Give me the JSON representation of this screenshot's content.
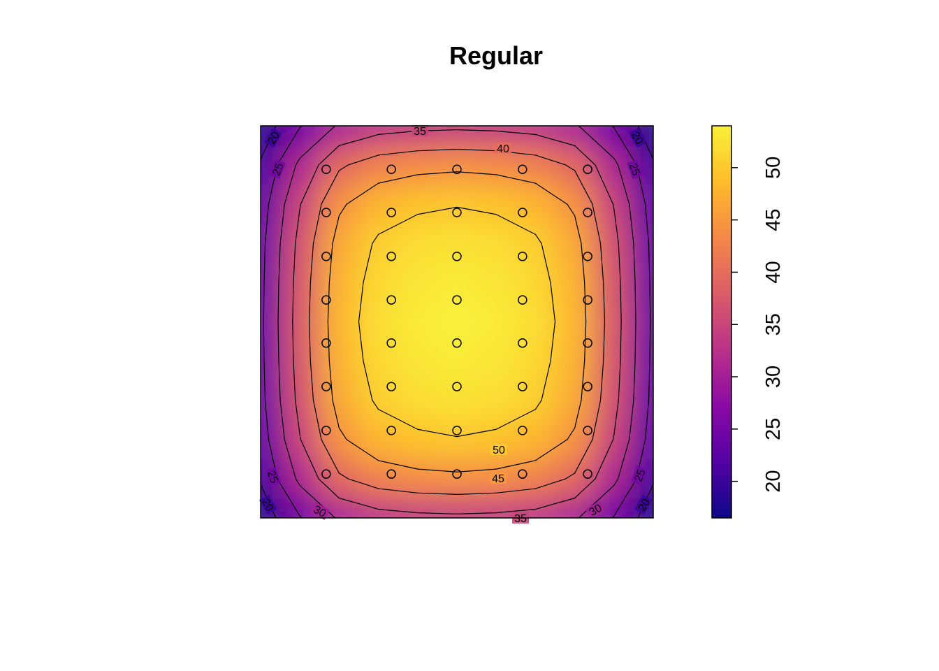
{
  "chart_data": {
    "type": "contour",
    "title": "Regular",
    "xlim": [
      0,
      1
    ],
    "ylim": [
      0,
      1
    ],
    "grid_x": [
      0,
      0.1,
      0.2,
      0.3,
      0.4,
      0.5,
      0.6,
      0.7,
      0.8,
      0.9,
      1
    ],
    "grid_y": [
      0,
      0.1,
      0.2,
      0.3,
      0.4,
      0.5,
      0.6,
      0.7,
      0.8,
      0.9,
      1
    ],
    "z": [
      [
        17.0,
        24.7,
        30.6,
        32.9,
        33.7,
        34.0,
        33.7,
        32.9,
        30.6,
        24.7,
        17.0
      ],
      [
        20.5,
        31.1,
        39.3,
        42.4,
        43.6,
        44.0,
        43.6,
        42.4,
        39.3,
        31.1,
        20.5
      ],
      [
        22.5,
        34.8,
        44.3,
        48.0,
        49.3,
        49.8,
        49.3,
        48.0,
        44.3,
        34.8,
        22.5
      ],
      [
        23.5,
        36.5,
        46.7,
        50.6,
        52.0,
        52.5,
        52.0,
        50.6,
        46.7,
        36.5,
        23.5
      ],
      [
        23.8,
        37.2,
        47.6,
        51.5,
        53.0,
        53.5,
        53.0,
        51.5,
        47.6,
        37.2,
        23.8
      ],
      [
        24.0,
        37.5,
        48.0,
        52.0,
        53.5,
        54.0,
        53.5,
        52.0,
        48.0,
        37.5,
        24.0
      ],
      [
        23.8,
        37.2,
        47.6,
        51.5,
        53.0,
        53.5,
        53.0,
        51.5,
        47.6,
        37.2,
        23.8
      ],
      [
        23.5,
        36.5,
        46.7,
        50.6,
        52.0,
        52.5,
        52.0,
        50.6,
        46.7,
        36.5,
        23.5
      ],
      [
        22.5,
        34.8,
        44.3,
        48.0,
        49.3,
        49.8,
        49.3,
        48.0,
        44.3,
        34.8,
        22.5
      ],
      [
        20.5,
        31.1,
        39.3,
        42.4,
        43.6,
        44.0,
        43.6,
        42.4,
        39.3,
        31.1,
        20.5
      ],
      [
        17.0,
        24.7,
        30.6,
        32.9,
        33.7,
        34.0,
        33.7,
        32.9,
        30.6,
        24.7,
        17.0
      ]
    ],
    "levels": [
      20,
      25,
      30,
      35,
      40,
      45,
      50
    ],
    "points": {
      "x": [
        0.167,
        0.333,
        0.5,
        0.667,
        0.833,
        0.167,
        0.333,
        0.5,
        0.667,
        0.833,
        0.167,
        0.333,
        0.5,
        0.667,
        0.833,
        0.167,
        0.333,
        0.5,
        0.667,
        0.833,
        0.167,
        0.333,
        0.5,
        0.667,
        0.833,
        0.167,
        0.333,
        0.5,
        0.667,
        0.833,
        0.167,
        0.333,
        0.5,
        0.667,
        0.833,
        0.167,
        0.333,
        0.5,
        0.667,
        0.833
      ],
      "y": [
        0.889,
        0.889,
        0.889,
        0.889,
        0.889,
        0.779,
        0.779,
        0.779,
        0.779,
        0.779,
        0.667,
        0.667,
        0.667,
        0.667,
        0.667,
        0.556,
        0.556,
        0.556,
        0.556,
        0.556,
        0.446,
        0.446,
        0.446,
        0.446,
        0.446,
        0.335,
        0.335,
        0.335,
        0.335,
        0.335,
        0.223,
        0.223,
        0.223,
        0.223,
        0.223,
        0.112,
        0.112,
        0.112,
        0.112,
        0.112
      ]
    },
    "zlim": [
      16.5,
      54
    ],
    "zticks": [
      20,
      25,
      30,
      35,
      40,
      45,
      50
    ],
    "colormap": [
      "#0D0887",
      "#5402A3",
      "#8B0AA5",
      "#B93289",
      "#DB5C68",
      "#F48849",
      "#FEBC2A",
      "#F9F03A"
    ]
  }
}
